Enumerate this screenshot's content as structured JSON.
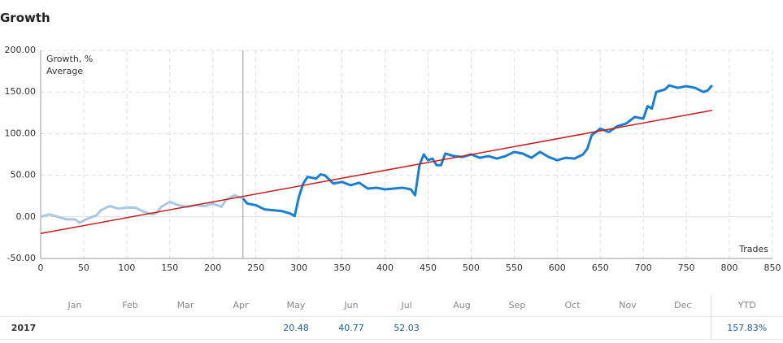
{
  "chart_data": {
    "type": "line",
    "title": "Growth",
    "xlabel": "Trades",
    "xlim": [
      0,
      850
    ],
    "xticks": [
      0,
      50,
      100,
      150,
      200,
      250,
      300,
      350,
      400,
      450,
      500,
      550,
      600,
      650,
      700,
      750,
      800,
      850
    ],
    "ylim": [
      -50,
      200
    ],
    "yticks": [
      {
        "value": -50,
        "label": "-50.00"
      },
      {
        "value": 0,
        "label": "0.00"
      },
      {
        "value": 50,
        "label": "50.00"
      },
      {
        "value": 100,
        "label": "100.00"
      },
      {
        "value": 150,
        "label": "150.00"
      },
      {
        "value": 200,
        "label": "200.00"
      }
    ],
    "grid": true,
    "legend": "upper left",
    "marker_x": 235,
    "faded_color": "#a9c9e2",
    "series": [
      {
        "name": "Growth, %",
        "color": "#1a7fd0",
        "x": [
          0,
          10,
          20,
          30,
          40,
          45,
          55,
          65,
          70,
          80,
          90,
          100,
          110,
          120,
          130,
          135,
          140,
          150,
          160,
          170,
          180,
          190,
          200,
          210,
          215,
          225,
          235,
          240,
          250,
          260,
          270,
          280,
          290,
          295,
          300,
          305,
          310,
          320,
          325,
          330,
          340,
          350,
          360,
          370,
          380,
          390,
          400,
          410,
          420,
          430,
          435,
          440,
          445,
          450,
          455,
          460,
          465,
          470,
          480,
          490,
          500,
          510,
          520,
          530,
          540,
          550,
          560,
          570,
          580,
          590,
          600,
          610,
          620,
          630,
          635,
          640,
          650,
          660,
          670,
          680,
          690,
          700,
          705,
          710,
          715,
          725,
          730,
          740,
          750,
          760,
          770,
          775,
          780
        ],
        "values": [
          0,
          3,
          0,
          -3,
          -3,
          -7,
          -2,
          2,
          8,
          13,
          10,
          11,
          11,
          6,
          3,
          5,
          12,
          18,
          14,
          12,
          14,
          13,
          16,
          12,
          20,
          26,
          22,
          16,
          14,
          9,
          8,
          7,
          4,
          1,
          24,
          40,
          48,
          46,
          51,
          50,
          40,
          42,
          38,
          41,
          34,
          35,
          33,
          34,
          35,
          33,
          26,
          62,
          75,
          68,
          70,
          62,
          62,
          76,
          73,
          72,
          75,
          71,
          73,
          70,
          73,
          78,
          76,
          71,
          78,
          72,
          68,
          71,
          70,
          75,
          82,
          98,
          106,
          102,
          109,
          112,
          120,
          118,
          133,
          130,
          150,
          153,
          158,
          155,
          157,
          155,
          150,
          152,
          158
        ]
      },
      {
        "name": "Average",
        "color": "#c81e1e",
        "x": [
          0,
          780
        ],
        "values": [
          -20,
          128
        ]
      }
    ]
  },
  "table": {
    "columns": [
      "Jan",
      "Feb",
      "Mar",
      "Apr",
      "May",
      "Jun",
      "Jul",
      "Aug",
      "Sep",
      "Oct",
      "Nov",
      "Dec",
      "YTD"
    ],
    "rows": [
      {
        "year": "2017",
        "values": [
          null,
          null,
          null,
          null,
          20.48,
          40.77,
          52.03,
          null,
          null,
          null,
          null,
          null,
          "157.83%"
        ]
      }
    ]
  }
}
